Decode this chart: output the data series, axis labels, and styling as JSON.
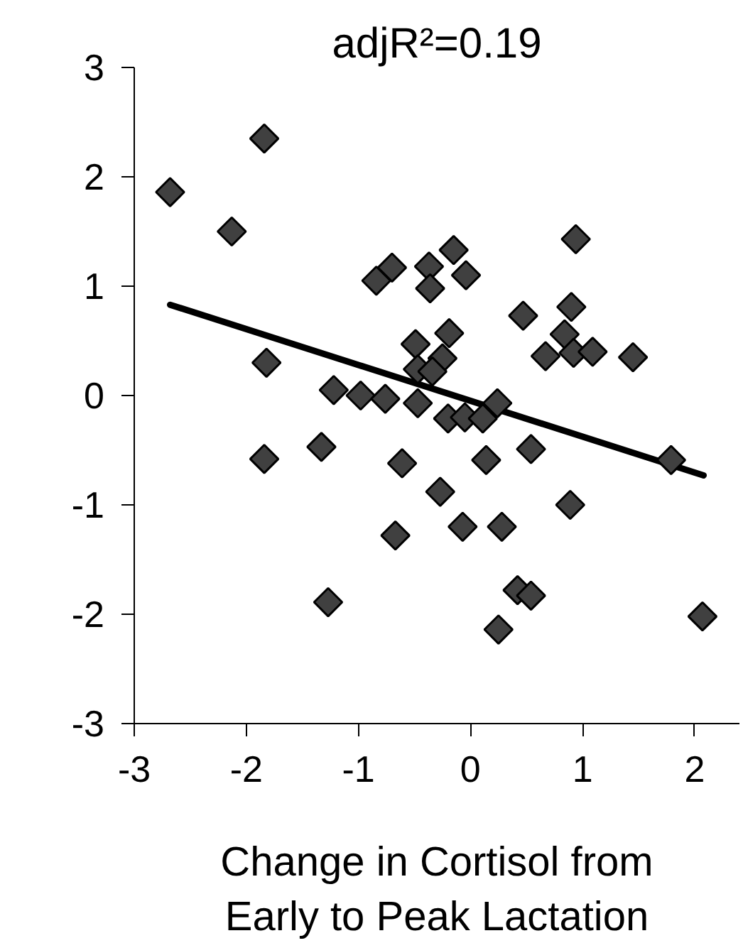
{
  "chart_data": {
    "type": "scatter",
    "title": "adjR²=0.19",
    "xlabel": "Change in Cortisol from\nEarly to Peak Lactation",
    "xlim": [
      -3,
      2.4
    ],
    "ylim": [
      -3,
      3
    ],
    "xticks": [
      -3,
      -2,
      -1,
      0,
      1,
      2
    ],
    "yticks": [
      -3,
      -2,
      -1,
      0,
      1,
      2,
      3
    ],
    "grid": false,
    "series": [
      {
        "marker": "diamond",
        "color": "#404040",
        "x": [
          -2.68,
          -1.84,
          -2.13,
          -0.84,
          -0.7,
          -0.37,
          -0.36,
          -0.15,
          -0.04,
          0.94,
          0.47,
          0.9,
          0.84,
          0.92,
          1.09,
          0.67,
          1.45,
          -0.49,
          -0.19,
          -0.25,
          -0.47,
          -0.34,
          -1.82,
          -1.22,
          -0.98,
          -0.76,
          -0.47,
          -0.2,
          -0.05,
          0.11,
          0.24,
          -1.84,
          -1.33,
          -0.61,
          0.14,
          0.54,
          -0.27,
          0.89,
          -0.07,
          0.28,
          -0.67,
          1.79,
          -1.27,
          0.42,
          0.54,
          0.25,
          2.07
        ],
        "values": [
          1.86,
          2.35,
          1.5,
          1.05,
          1.17,
          1.18,
          0.98,
          1.33,
          1.1,
          1.43,
          0.73,
          0.81,
          0.56,
          0.39,
          0.4,
          0.36,
          0.35,
          0.47,
          0.57,
          0.34,
          0.24,
          0.22,
          0.3,
          0.05,
          0.0,
          -0.03,
          -0.07,
          -0.21,
          -0.2,
          -0.21,
          -0.07,
          -0.58,
          -0.47,
          -0.62,
          -0.59,
          -0.49,
          -0.88,
          -1.0,
          -1.2,
          -1.2,
          -1.28,
          -0.59,
          -1.89,
          -1.78,
          -1.83,
          -2.14,
          -2.02
        ]
      },
      {
        "type": "line",
        "color": "#000000",
        "x": [
          -2.68,
          2.08
        ],
        "values": [
          0.83,
          -0.73
        ]
      }
    ]
  }
}
